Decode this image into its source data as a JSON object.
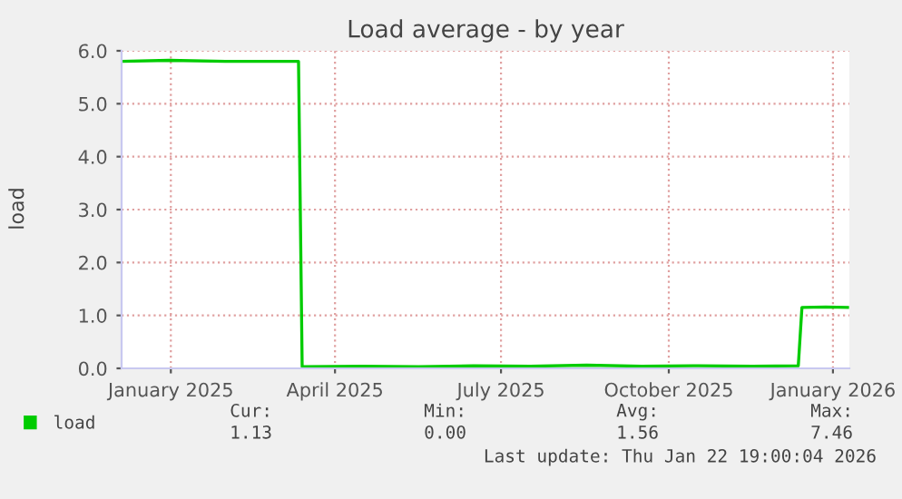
{
  "chart_data": {
    "type": "line",
    "title": "Load average - by year",
    "ylabel": "load",
    "xlim": [
      "2024-12-20",
      "2026-01-23"
    ],
    "xticks": [
      {
        "value": "2025-01-16",
        "label": "January 2025"
      },
      {
        "value": "2025-04-16",
        "label": "April 2025"
      },
      {
        "value": "2025-07-16",
        "label": "July 2025"
      },
      {
        "value": "2025-10-16",
        "label": "October 2025"
      },
      {
        "value": "2026-01-14",
        "label": "January 2026"
      }
    ],
    "ylim": [
      0,
      6
    ],
    "yticks": [
      {
        "value": 0,
        "label": "0.0"
      },
      {
        "value": 1,
        "label": "1.0"
      },
      {
        "value": 2,
        "label": "2.0"
      },
      {
        "value": 3,
        "label": "3.0"
      },
      {
        "value": 4,
        "label": "4.0"
      },
      {
        "value": 5,
        "label": "5.0"
      },
      {
        "value": 6,
        "label": "6.0"
      }
    ],
    "grid": true,
    "legend": "bottom left",
    "series": [
      {
        "name": "load",
        "color": "#00cc00",
        "x": [
          "2024-12-20",
          "2025-01-15",
          "2025-02-15",
          "2025-03-27",
          "2025-03-29",
          "2025-05-01",
          "2025-06-01",
          "2025-07-01",
          "2025-08-01",
          "2025-09-01",
          "2025-10-01",
          "2025-11-01",
          "2025-12-01",
          "2025-12-26",
          "2025-12-28",
          "2026-01-10",
          "2026-01-22"
        ],
        "values": [
          5.8,
          5.82,
          5.8,
          5.8,
          0.03,
          0.04,
          0.03,
          0.05,
          0.04,
          0.06,
          0.04,
          0.05,
          0.04,
          0.05,
          1.15,
          1.16,
          1.15
        ]
      }
    ],
    "annotations": [
      "Cur:",
      "Min:",
      "Avg:",
      "Max:",
      "1.13",
      "0.00",
      "1.56",
      "7.46",
      "Last update: Thu Jan 22 19:00:04 2026"
    ]
  }
}
